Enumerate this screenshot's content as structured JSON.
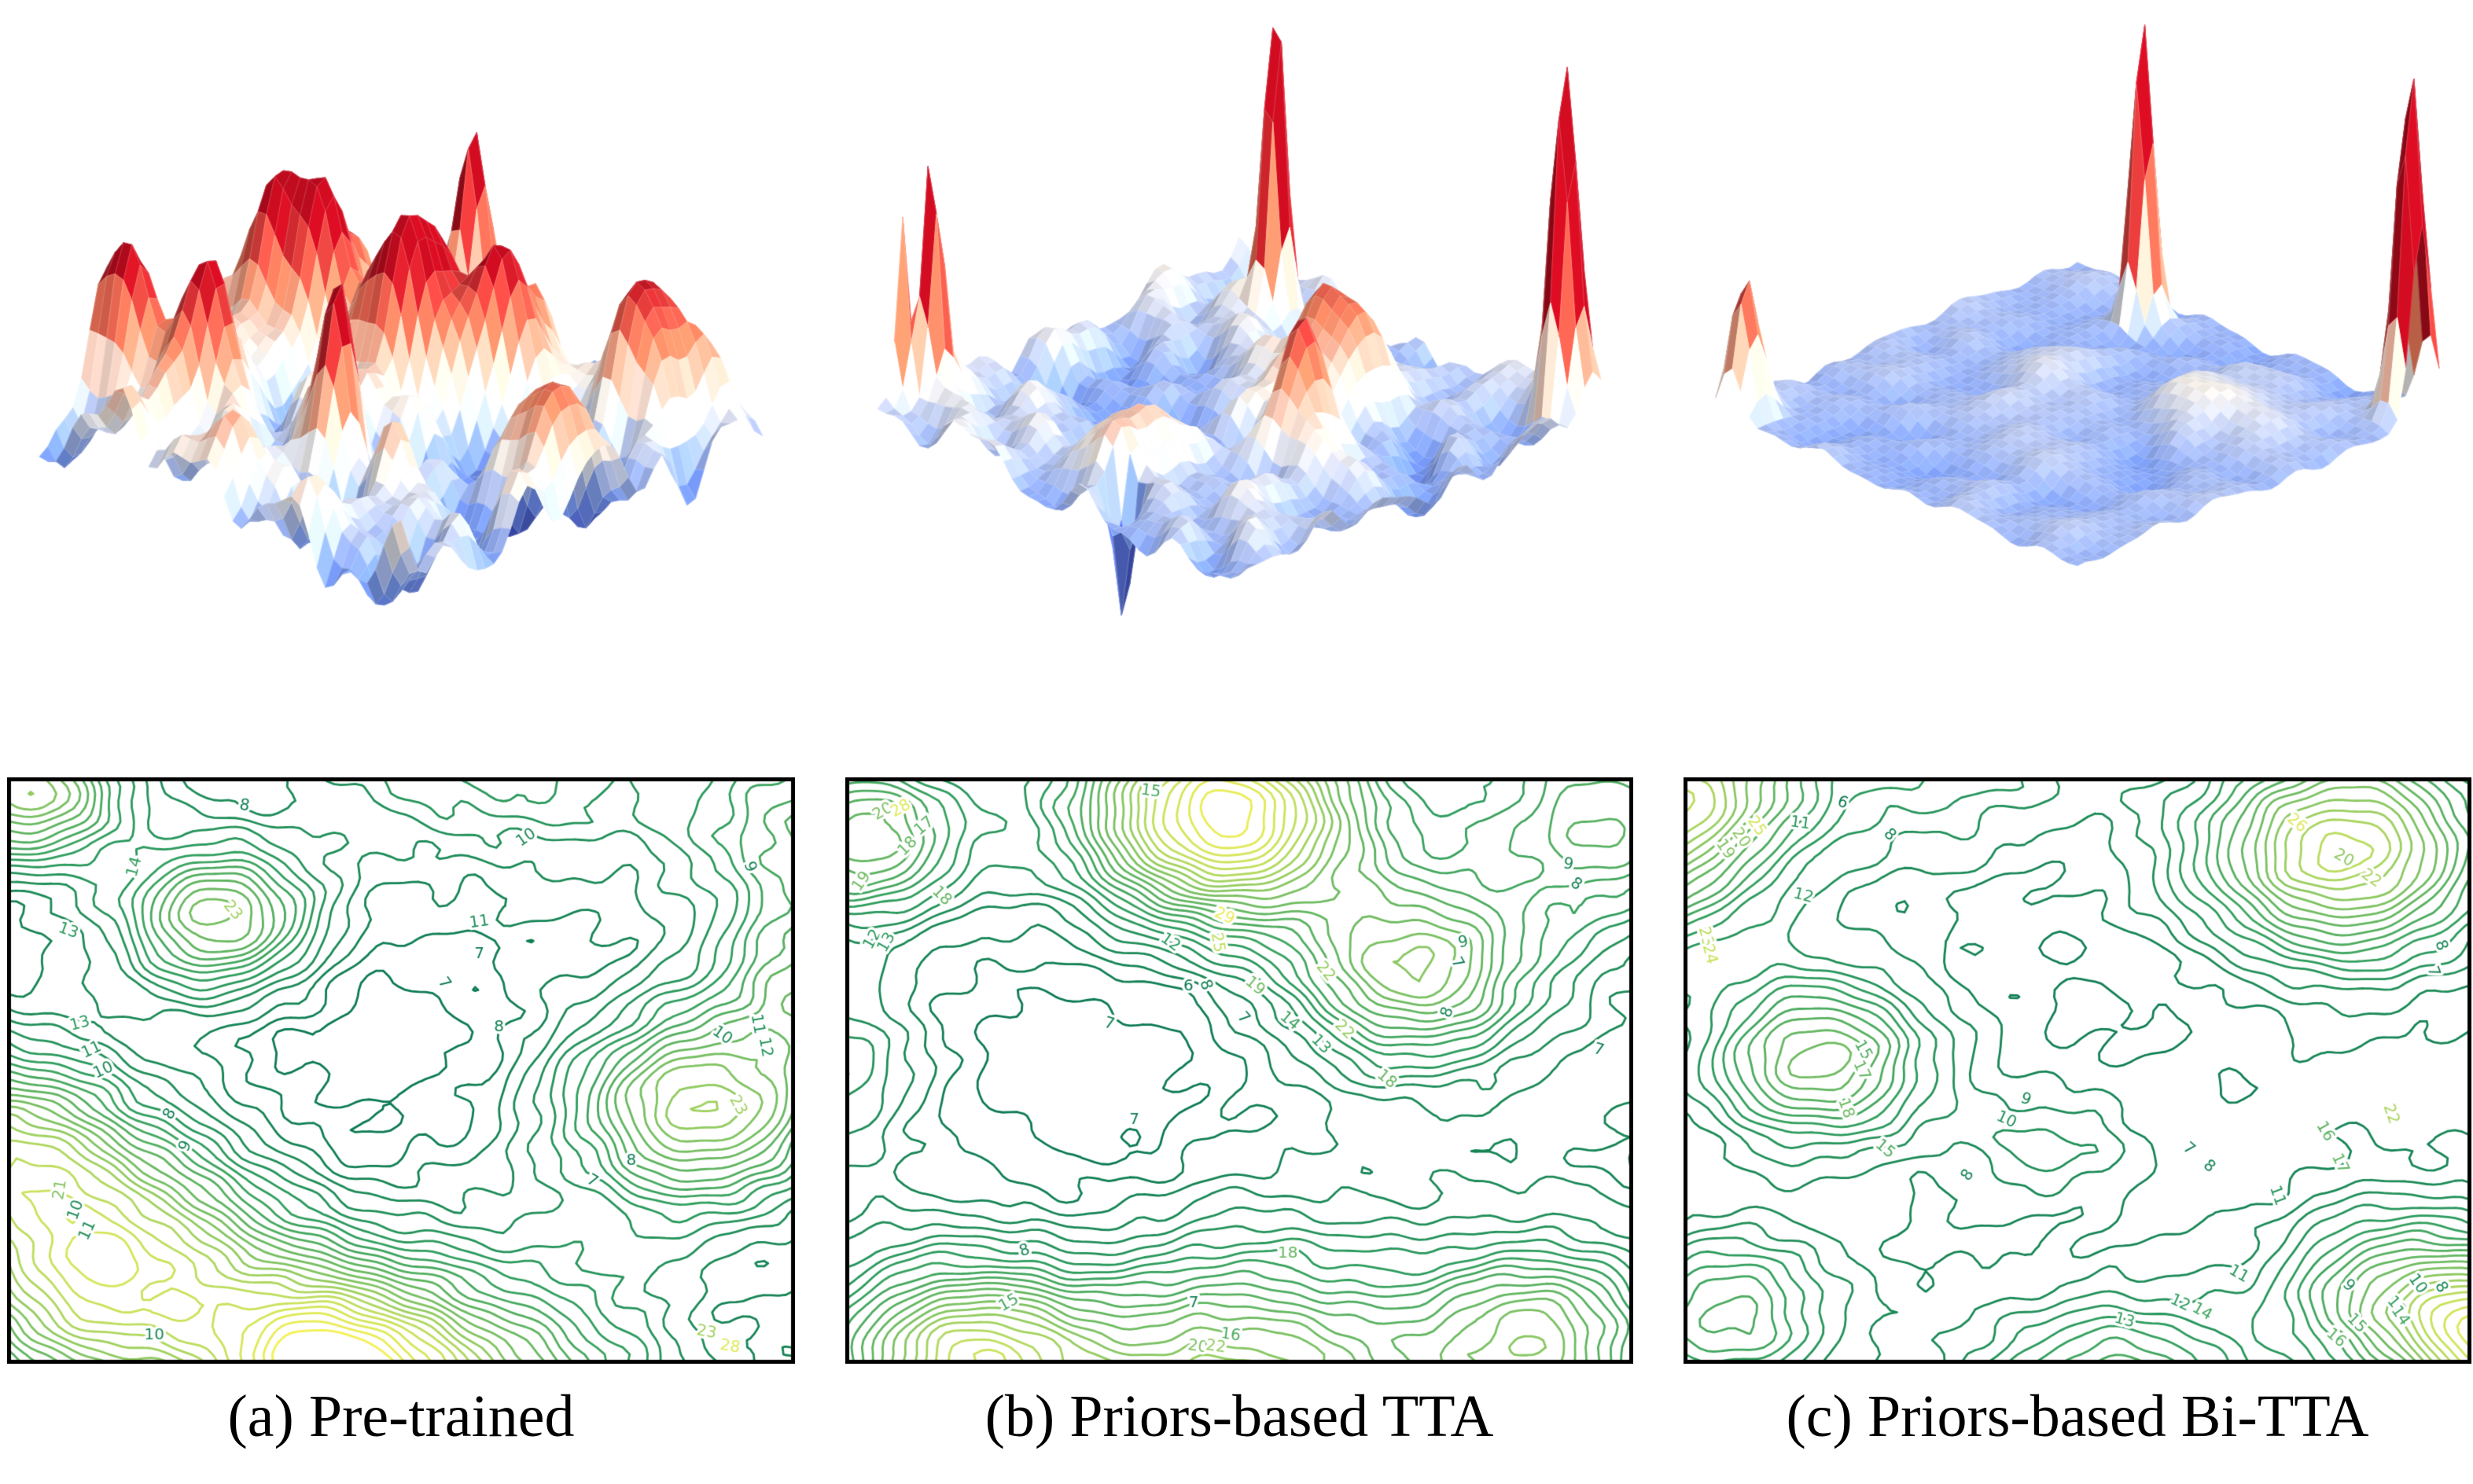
{
  "figure": {
    "background": "#ffffff",
    "caption_color": "#000000",
    "description": "Loss landscape comparison: 3D loss surfaces (top) and loss contour maps (bottom) for three adaptation methods"
  },
  "colors": {
    "surface_colormap": {
      "name": "coolwarm",
      "stops": [
        [
          0.0,
          "#3b4cc0"
        ],
        [
          0.25,
          "#7c9ff9"
        ],
        [
          0.5,
          "#f2ede7"
        ],
        [
          0.75,
          "#ec835f"
        ],
        [
          1.0,
          "#b20a1c"
        ]
      ]
    },
    "contour_colormap": {
      "name": "summer",
      "stops": [
        [
          0.0,
          "#0b7a52"
        ],
        [
          0.3,
          "#2f9e5e"
        ],
        [
          0.6,
          "#7fc362"
        ],
        [
          0.8,
          "#c4e05c"
        ],
        [
          1.0,
          "#f4f154"
        ]
      ]
    },
    "axes_border": "#000000"
  },
  "chart_data": [
    {
      "panel": "a",
      "caption": "(a) Pre-trained",
      "type": "surface+contour",
      "axes": "hidden",
      "surface": {
        "ripple": 0.3,
        "znorm": [
          -0.55,
          0.8
        ],
        "peaks": [
          [
            0.3,
            0.1,
            1.15,
            0.03
          ],
          [
            0.1,
            0.38,
            0.95,
            0.09
          ],
          [
            0.42,
            0.42,
            0.85,
            0.11
          ],
          [
            0.6,
            0.28,
            0.8,
            0.07
          ],
          [
            0.85,
            0.12,
            1.05,
            0.06
          ],
          [
            0.05,
            0.82,
            0.95,
            0.05
          ],
          [
            0.22,
            0.78,
            0.9,
            0.055
          ],
          [
            0.55,
            0.72,
            1.05,
            0.035
          ],
          [
            0.88,
            0.5,
            0.7,
            0.06
          ],
          [
            0.35,
            0.6,
            -0.35,
            0.1
          ],
          [
            0.7,
            0.42,
            -0.35,
            0.12
          ],
          [
            0.5,
            0.08,
            -0.25,
            0.08
          ]
        ]
      },
      "contour": {
        "base": 8,
        "levels": [
          7,
          30
        ],
        "ripple": 0.55,
        "bumps": [
          [
            0.02,
            0.02,
            14,
            0.09
          ],
          [
            0.27,
            0.24,
            13,
            0.09
          ],
          [
            -0.03,
            0.62,
            12,
            0.12
          ],
          [
            0.13,
            0.85,
            18,
            0.16
          ],
          [
            0.4,
            0.99,
            12,
            0.1
          ],
          [
            0.55,
            1.1,
            16,
            0.18
          ],
          [
            0.88,
            0.57,
            15,
            0.12
          ],
          [
            0.62,
            -0.12,
            7,
            0.18
          ],
          [
            1.04,
            0.08,
            9,
            0.12
          ],
          [
            1.05,
            0.35,
            10,
            0.1
          ],
          [
            0.43,
            0.44,
            -1.8,
            0.17
          ],
          [
            0.43,
            0.67,
            -0.9,
            0.07
          ],
          [
            0.78,
            0.65,
            -0.8,
            0.08
          ]
        ],
        "labels": [
          [
            0.3,
            0.045,
            "8",
            -10
          ],
          [
            0.66,
            0.1,
            "10",
            35
          ],
          [
            0.075,
            0.26,
            "13",
            -20
          ],
          [
            0.16,
            0.15,
            "14",
            75
          ],
          [
            0.285,
            0.225,
            "23",
            -50
          ],
          [
            0.09,
            0.42,
            "13",
            15
          ],
          [
            0.105,
            0.465,
            "11",
            25
          ],
          [
            0.12,
            0.5,
            "10",
            25
          ],
          [
            0.6,
            0.245,
            "11",
            8
          ],
          [
            0.6,
            0.3,
            "7",
            0
          ],
          [
            0.555,
            0.35,
            "7",
            -55
          ],
          [
            0.625,
            0.425,
            "8",
            0
          ],
          [
            0.205,
            0.575,
            "8",
            60
          ],
          [
            0.225,
            0.63,
            "9",
            65
          ],
          [
            0.065,
            0.705,
            "21",
            80
          ],
          [
            0.085,
            0.74,
            "10",
            70
          ],
          [
            0.1,
            0.775,
            "11",
            65
          ],
          [
            0.744,
            0.69,
            "7",
            -30
          ],
          [
            0.794,
            0.655,
            "8",
            0
          ],
          [
            0.91,
            0.44,
            "10",
            -35
          ],
          [
            0.93,
            0.56,
            "23",
            -60
          ],
          [
            0.185,
            0.955,
            "10",
            0
          ],
          [
            0.945,
            0.15,
            "9",
            -70
          ],
          [
            0.955,
            0.42,
            "11",
            -80
          ],
          [
            0.965,
            0.46,
            "12",
            -80
          ],
          [
            0.89,
            0.95,
            "23",
            -10
          ],
          [
            0.92,
            0.975,
            "28",
            -10
          ]
        ]
      }
    },
    {
      "panel": "b",
      "caption": "(b) Priors-based TTA",
      "type": "surface+contour",
      "axes": "hidden",
      "surface": {
        "ripple": 0.16,
        "znorm": [
          -0.5,
          0.85
        ],
        "peaks": [
          [
            0.22,
            0.12,
            1.95,
            0.022
          ],
          [
            0.93,
            0.03,
            2.14,
            0.028
          ],
          [
            0.03,
            0.88,
            1.55,
            0.02
          ],
          [
            0.0,
            0.93,
            1.1,
            0.015
          ],
          [
            0.7,
            0.52,
            0.95,
            0.05
          ],
          [
            0.5,
            0.38,
            0.45,
            0.1
          ],
          [
            0.63,
            0.27,
            0.5,
            0.07
          ],
          [
            0.52,
            0.78,
            0.35,
            0.09
          ],
          [
            0.6,
            0.92,
            -0.85,
            0.018
          ],
          [
            0.33,
            0.52,
            -0.25,
            0.16
          ],
          [
            0.75,
            0.3,
            -0.15,
            0.1
          ]
        ]
      },
      "contour": {
        "base": 8,
        "levels": [
          6,
          30
        ],
        "ripple": 0.5,
        "bumps": [
          [
            0.48,
            0.06,
            22,
            0.13
          ],
          [
            0.72,
            0.33,
            13,
            0.11
          ],
          [
            0.97,
            0.07,
            9,
            0.13
          ],
          [
            0.02,
            0.1,
            11,
            0.1
          ],
          [
            0.15,
            1.0,
            16,
            0.12
          ],
          [
            0.5,
            1.06,
            15,
            0.17
          ],
          [
            0.88,
            0.96,
            12,
            0.11
          ],
          [
            -0.05,
            0.5,
            5,
            0.1
          ],
          [
            0.34,
            0.44,
            -2.6,
            0.2
          ],
          [
            0.27,
            0.57,
            -0.9,
            0.12
          ],
          [
            0.3,
            0.78,
            -1.2,
            0.1
          ]
        ],
        "labels": [
          [
            0.387,
            0.02,
            "15",
            -8
          ],
          [
            0.045,
            0.055,
            "20",
            30
          ],
          [
            0.068,
            0.05,
            "28",
            30
          ],
          [
            0.098,
            0.08,
            "17",
            40
          ],
          [
            0.077,
            0.115,
            "18",
            45
          ],
          [
            0.018,
            0.175,
            "19",
            55
          ],
          [
            0.032,
            0.275,
            "12",
            60
          ],
          [
            0.05,
            0.28,
            "13",
            60
          ],
          [
            0.12,
            0.2,
            "18",
            -45
          ],
          [
            0.412,
            0.28,
            "12",
            -35
          ],
          [
            0.481,
            0.235,
            "29",
            -25
          ],
          [
            0.472,
            0.28,
            "25",
            -80
          ],
          [
            0.435,
            0.355,
            "6",
            0
          ],
          [
            0.457,
            0.353,
            "8",
            -70
          ],
          [
            0.52,
            0.355,
            "19",
            -40
          ],
          [
            0.505,
            0.41,
            "7",
            -50
          ],
          [
            0.564,
            0.415,
            "14",
            -40
          ],
          [
            0.604,
            0.455,
            "13",
            -45
          ],
          [
            0.634,
            0.43,
            "22",
            -45
          ],
          [
            0.61,
            0.33,
            "22",
            -50
          ],
          [
            0.688,
            0.515,
            "18",
            -40
          ],
          [
            0.334,
            0.42,
            "7",
            -15
          ],
          [
            0.366,
            0.585,
            "7",
            0
          ],
          [
            0.92,
            0.146,
            "9",
            -10
          ],
          [
            0.93,
            0.18,
            "8",
            -35
          ],
          [
            0.786,
            0.28,
            "9",
            10
          ],
          [
            0.778,
            0.315,
            "7",
            -60
          ],
          [
            0.766,
            0.4,
            "8",
            70
          ],
          [
            0.959,
            0.465,
            "7",
            -15
          ],
          [
            0.226,
            0.81,
            "8",
            20
          ],
          [
            0.206,
            0.9,
            "15",
            30
          ],
          [
            0.442,
            0.9,
            "7",
            0
          ],
          [
            0.562,
            0.815,
            "18",
            0
          ],
          [
            0.489,
            0.955,
            "16",
            -8
          ],
          [
            0.447,
            0.975,
            "20",
            -8
          ],
          [
            0.47,
            0.975,
            "22",
            -8
          ]
        ]
      }
    },
    {
      "panel": "c",
      "caption": "(c) Priors-based Bi-TTA",
      "type": "surface+contour",
      "axes": "hidden",
      "surface": {
        "ripple": 0.06,
        "znorm": [
          -0.4,
          0.85
        ],
        "peaks": [
          [
            0.28,
            0.1,
            1.9,
            0.022
          ],
          [
            0.97,
            0.05,
            2.06,
            0.028
          ],
          [
            0.04,
            0.96,
            0.8,
            0.03
          ],
          [
            0.7,
            0.33,
            0.28,
            0.1
          ],
          [
            0.45,
            0.52,
            0.14,
            0.1
          ],
          [
            0.57,
            0.66,
            0.12,
            0.08
          ],
          [
            0.33,
            0.36,
            0.1,
            0.08
          ],
          [
            0.6,
            0.48,
            -0.1,
            0.15
          ]
        ]
      },
      "contour": {
        "base": 7.5,
        "levels": [
          6,
          28
        ],
        "ripple": 0.45,
        "bumps": [
          [
            0.84,
            0.12,
            16,
            0.13
          ],
          [
            -0.08,
            0.1,
            14,
            0.12
          ],
          [
            0.04,
            -0.02,
            7,
            0.09
          ],
          [
            0.3,
            -0.07,
            5,
            0.15
          ],
          [
            0.17,
            0.48,
            11,
            0.1
          ],
          [
            0.47,
            0.63,
            3,
            0.07
          ],
          [
            0.9,
            0.88,
            9,
            0.1
          ],
          [
            0.55,
            1.08,
            10,
            0.12
          ],
          [
            1.06,
            0.97,
            18,
            0.1
          ],
          [
            0.05,
            0.92,
            8,
            0.1
          ],
          [
            0.6,
            0.4,
            -0.6,
            0.15
          ],
          [
            0.4,
            0.25,
            -0.4,
            0.12
          ]
        ],
        "labels": [
          [
            0.2,
            0.04,
            "6",
            -20
          ],
          [
            0.26,
            0.095,
            "8",
            -45
          ],
          [
            0.146,
            0.075,
            "11",
            -8
          ],
          [
            0.15,
            0.2,
            "12",
            -15
          ],
          [
            0.05,
            0.12,
            "19",
            -55
          ],
          [
            0.07,
            0.1,
            "20",
            -55
          ],
          [
            0.09,
            0.08,
            "25",
            -55
          ],
          [
            0.025,
            0.27,
            "23",
            -75
          ],
          [
            0.03,
            0.3,
            "24",
            -75
          ],
          [
            0.84,
            0.135,
            "20",
            -30
          ],
          [
            0.875,
            0.17,
            "22",
            -35
          ],
          [
            0.78,
            0.075,
            "26",
            -40
          ],
          [
            0.964,
            0.285,
            "8",
            -70
          ],
          [
            0.954,
            0.33,
            "7",
            -70
          ],
          [
            0.226,
            0.465,
            "15",
            -60
          ],
          [
            0.224,
            0.5,
            "17",
            -65
          ],
          [
            0.204,
            0.565,
            "18",
            -70
          ],
          [
            0.254,
            0.635,
            "15",
            -40
          ],
          [
            0.434,
            0.55,
            "9",
            -20
          ],
          [
            0.409,
            0.585,
            "10",
            -25
          ],
          [
            0.36,
            0.68,
            "8",
            55
          ],
          [
            0.642,
            0.635,
            "7",
            -40
          ],
          [
            0.668,
            0.665,
            "8",
            -40
          ],
          [
            0.755,
            0.715,
            "11",
            -70
          ],
          [
            0.706,
            0.85,
            "11",
            -30
          ],
          [
            0.631,
            0.9,
            "12",
            -25
          ],
          [
            0.56,
            0.93,
            "13",
            -15
          ],
          [
            0.659,
            0.915,
            "14",
            -30
          ],
          [
            0.846,
            0.87,
            "9",
            -45
          ],
          [
            0.934,
            0.867,
            "10",
            -55
          ],
          [
            0.964,
            0.873,
            "8",
            -60
          ],
          [
            0.907,
            0.905,
            "13",
            -50
          ],
          [
            0.912,
            0.922,
            "14",
            -55
          ],
          [
            0.856,
            0.935,
            "15",
            -45
          ],
          [
            0.83,
            0.96,
            "16",
            -40
          ],
          [
            0.816,
            0.605,
            "16",
            -60
          ],
          [
            0.835,
            0.66,
            "17",
            -65
          ],
          [
            0.9,
            0.575,
            "22",
            -70
          ]
        ]
      }
    }
  ]
}
